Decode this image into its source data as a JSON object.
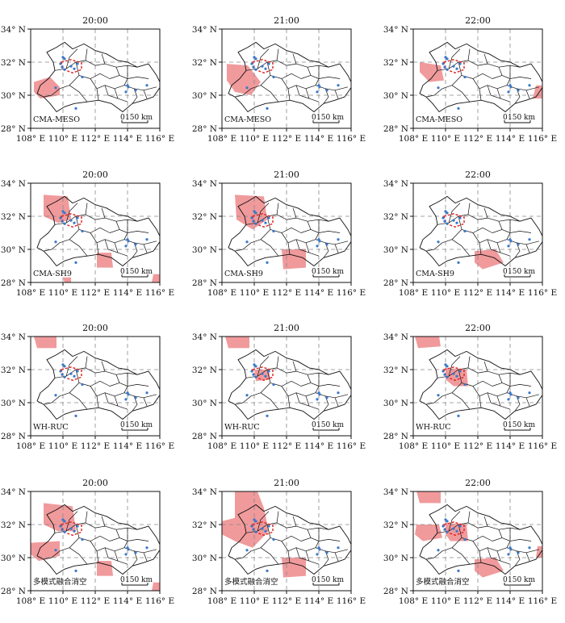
{
  "times": [
    "20:00",
    "21:00",
    "22:00"
  ],
  "x_axis": {
    "ticks": [
      "108° E",
      "110° E",
      "112° E",
      "114° E",
      "116° E"
    ]
  },
  "y_axis": {
    "ticks": [
      "28° N",
      "30° N",
      "32° N",
      "34° N"
    ]
  },
  "scale_bar": {
    "zero": "0",
    "distance": "150 km"
  },
  "rows": [
    {
      "model": "CMA-MESO",
      "panels": [
        {
          "time": "20:00",
          "regions": [
            [
              [
                108.2,
                30.8
              ],
              [
                109.2,
                31.1
              ],
              [
                109.8,
                30.5
              ],
              [
                109.8,
                30.0
              ],
              [
                108.6,
                29.8
              ],
              [
                108.2,
                30.2
              ]
            ]
          ]
        },
        {
          "time": "21:00",
          "regions": [
            [
              [
                108.3,
                31.9
              ],
              [
                109.6,
                31.8
              ],
              [
                110.4,
                30.8
              ],
              [
                109.8,
                30.0
              ],
              [
                108.8,
                30.2
              ],
              [
                108.3,
                30.9
              ]
            ]
          ]
        },
        {
          "time": "22:00",
          "regions": [
            [
              [
                108.4,
                32.0
              ],
              [
                109.7,
                31.8
              ],
              [
                109.9,
                30.9
              ],
              [
                109.0,
                30.8
              ],
              [
                108.4,
                31.4
              ]
            ],
            [
              [
                115.6,
                30.6
              ],
              [
                116.0,
                30.6
              ],
              [
                116.0,
                29.8
              ],
              [
                115.4,
                29.8
              ]
            ]
          ]
        }
      ]
    },
    {
      "model": "CMA-SH9",
      "panels": [
        {
          "time": "20:00",
          "regions": [
            [
              [
                108.8,
                33.3
              ],
              [
                110.3,
                33.2
              ],
              [
                110.5,
                31.8
              ],
              [
                109.7,
                31.6
              ],
              [
                108.8,
                32.0
              ]
            ],
            [
              [
                110.1,
                28.0
              ],
              [
                110.5,
                28.0
              ],
              [
                110.5,
                28.3
              ],
              [
                110.0,
                28.3
              ]
            ],
            [
              [
                112.1,
                29.8
              ],
              [
                113.0,
                29.8
              ],
              [
                113.1,
                28.9
              ],
              [
                112.1,
                28.9
              ]
            ],
            [
              [
                115.6,
                28.5
              ],
              [
                116.0,
                28.5
              ],
              [
                116.0,
                28.0
              ],
              [
                115.5,
                28.0
              ]
            ]
          ]
        },
        {
          "time": "21:00",
          "regions": [
            [
              [
                108.8,
                33.3
              ],
              [
                110.6,
                33.2
              ],
              [
                110.8,
                31.8
              ],
              [
                109.9,
                31.2
              ],
              [
                108.9,
                31.8
              ]
            ],
            [
              [
                111.7,
                30.0
              ],
              [
                113.2,
                30.0
              ],
              [
                113.2,
                28.9
              ],
              [
                111.8,
                28.8
              ]
            ]
          ]
        },
        {
          "time": "22:00",
          "regions": [
            [
              [
                111.8,
                29.9
              ],
              [
                113.1,
                30.0
              ],
              [
                113.6,
                29.2
              ],
              [
                112.3,
                28.8
              ],
              [
                111.8,
                29.2
              ]
            ]
          ]
        }
      ]
    },
    {
      "model": "WH-RUC",
      "panels": [
        {
          "time": "20:00",
          "regions": [
            [
              [
                108.2,
                34.0
              ],
              [
                109.6,
                34.0
              ],
              [
                109.6,
                33.3
              ],
              [
                108.4,
                33.3
              ]
            ]
          ]
        },
        {
          "time": "21:00",
          "regions": [
            [
              [
                108.2,
                34.0
              ],
              [
                109.7,
                34.0
              ],
              [
                109.7,
                33.3
              ],
              [
                108.4,
                33.3
              ]
            ],
            [
              [
                110.0,
                32.0
              ],
              [
                110.9,
                32.0
              ],
              [
                111.0,
                31.4
              ],
              [
                110.1,
                31.3
              ]
            ]
          ]
        },
        {
          "time": "22:00",
          "regions": [
            [
              [
                108.1,
                34.0
              ],
              [
                109.6,
                34.0
              ],
              [
                109.7,
                33.4
              ],
              [
                108.3,
                33.3
              ]
            ],
            [
              [
                110.0,
                32.1
              ],
              [
                111.3,
                32.0
              ],
              [
                111.4,
                31.0
              ],
              [
                110.5,
                31.0
              ],
              [
                110.0,
                31.4
              ]
            ]
          ]
        }
      ]
    },
    {
      "model": "多模式融合消空",
      "panels": [
        {
          "time": "20:00",
          "regions": [
            [
              [
                108.8,
                33.3
              ],
              [
                110.6,
                33.1
              ],
              [
                110.8,
                31.6
              ],
              [
                109.7,
                31.6
              ],
              [
                108.8,
                32.0
              ]
            ],
            [
              [
                108.0,
                30.9
              ],
              [
                109.8,
                31.0
              ],
              [
                109.8,
                30.1
              ],
              [
                108.5,
                29.8
              ],
              [
                108.0,
                30.2
              ]
            ],
            [
              [
                112.1,
                29.8
              ],
              [
                113.0,
                29.8
              ],
              [
                113.1,
                28.9
              ],
              [
                112.1,
                28.9
              ]
            ],
            [
              [
                115.6,
                28.5
              ],
              [
                116.0,
                28.5
              ],
              [
                116.0,
                28.0
              ],
              [
                115.5,
                28.0
              ]
            ]
          ]
        },
        {
          "time": "21:00",
          "regions": [
            [
              [
                108.8,
                34.0
              ],
              [
                110.2,
                34.0
              ],
              [
                110.6,
                33.0
              ],
              [
                110.9,
                31.6
              ],
              [
                109.9,
                30.6
              ],
              [
                108.8,
                31.0
              ],
              [
                108.0,
                31.4
              ],
              [
                108.0,
                32.2
              ],
              [
                108.8,
                32.4
              ]
            ],
            [
              [
                111.7,
                30.0
              ],
              [
                113.2,
                30.0
              ],
              [
                113.2,
                28.9
              ],
              [
                111.8,
                28.8
              ]
            ]
          ]
        },
        {
          "time": "22:00",
          "regions": [
            [
              [
                108.2,
                34.0
              ],
              [
                109.7,
                34.0
              ],
              [
                109.7,
                33.3
              ],
              [
                108.4,
                33.3
              ]
            ],
            [
              [
                110.0,
                32.1
              ],
              [
                111.3,
                32.0
              ],
              [
                111.4,
                31.0
              ],
              [
                110.3,
                31.0
              ],
              [
                110.0,
                31.4
              ]
            ],
            [
              [
                108.2,
                32.0
              ],
              [
                109.6,
                32.0
              ],
              [
                109.8,
                31.2
              ],
              [
                108.6,
                31.0
              ],
              [
                108.1,
                31.4
              ]
            ],
            [
              [
                111.8,
                29.9
              ],
              [
                113.1,
                30.0
              ],
              [
                113.6,
                29.2
              ],
              [
                112.3,
                28.8
              ],
              [
                111.8,
                29.2
              ]
            ],
            [
              [
                115.7,
                30.7
              ],
              [
                116.0,
                30.7
              ],
              [
                116.0,
                30.0
              ],
              [
                115.6,
                30.0
              ]
            ]
          ]
        }
      ]
    }
  ],
  "colors": {
    "forecast_region": "#f09a9c",
    "observation_points": "#3a78c8",
    "observed_area_outline": "#e02020",
    "province_border": "#111111",
    "gridline": "#888888"
  }
}
